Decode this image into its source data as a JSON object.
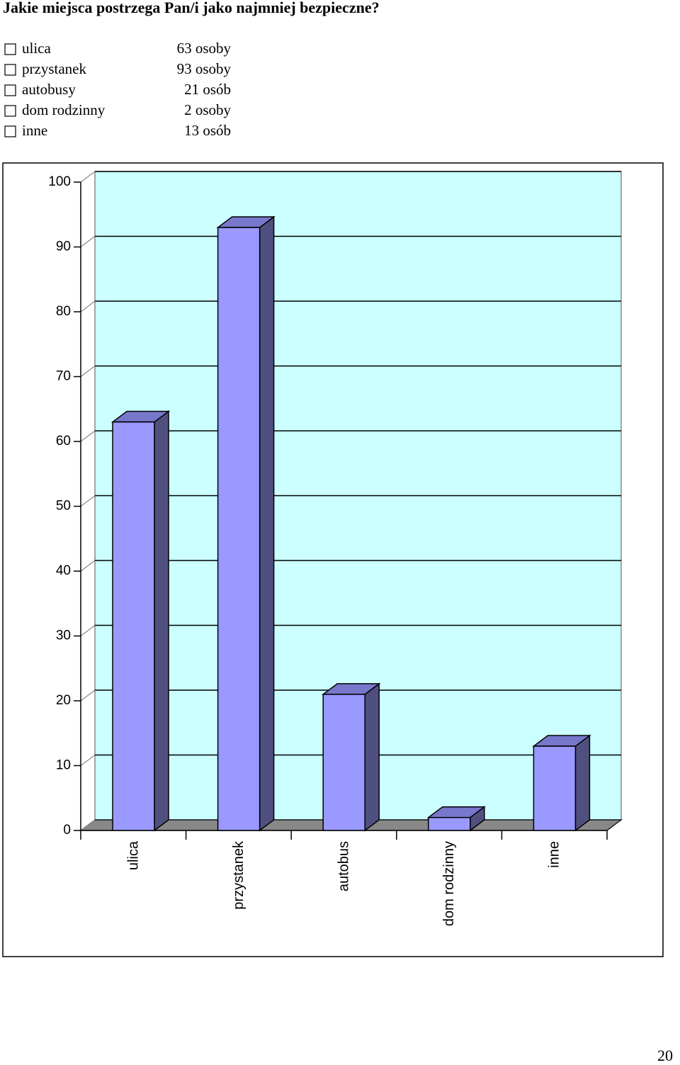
{
  "header": {
    "title": "Jakie miejsca postrzega Pan/i jako najmniej bezpieczne?"
  },
  "answers": [
    {
      "label": "ulica",
      "count": "63 osoby"
    },
    {
      "label": "przystanek",
      "count": "93 osoby"
    },
    {
      "label": "autobusy",
      "count": "21 osób"
    },
    {
      "label": "dom rodzinny",
      "count": "2 osoby"
    },
    {
      "label": "inne",
      "count": "13 osób"
    }
  ],
  "chart_data": {
    "type": "bar",
    "categories": [
      "ulica",
      "przystanek",
      "autobus",
      "dom rodzinny",
      "inne"
    ],
    "values": [
      63,
      93,
      21,
      2,
      13
    ],
    "color": "#9999ff",
    "ylim": [
      0,
      100
    ],
    "yticks": [
      0,
      10,
      20,
      30,
      40,
      50,
      60,
      70,
      80,
      90,
      100
    ],
    "grid": true
  },
  "footer": {
    "page_number": "20"
  }
}
